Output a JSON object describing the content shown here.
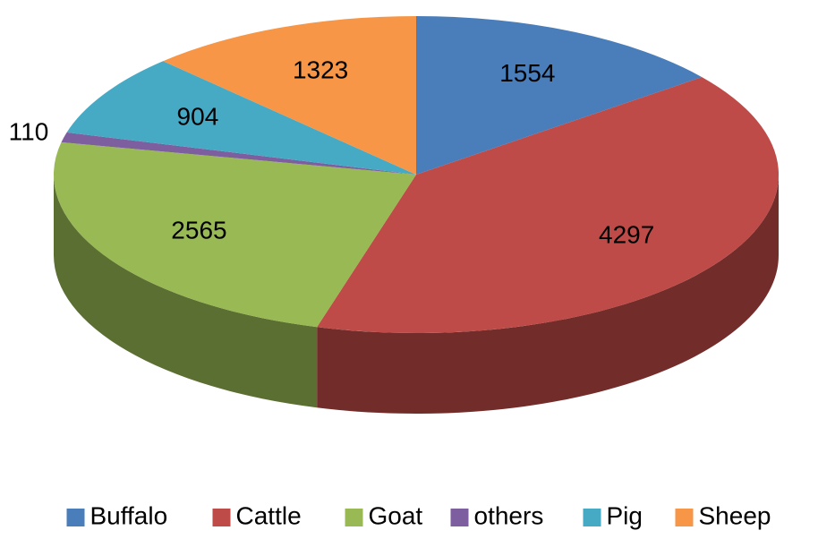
{
  "chart_data": {
    "type": "pie3d",
    "categories": [
      "Buffalo",
      "Cattle",
      "Goat",
      "others",
      "Pig",
      "Sheep"
    ],
    "values": [
      1554,
      4297,
      2565,
      110,
      904,
      1323
    ],
    "colors": [
      "#4a7ebb",
      "#be4b48",
      "#98b954",
      "#7d5fa0",
      "#46aac5",
      "#f79646"
    ],
    "legend": "bottom"
  }
}
